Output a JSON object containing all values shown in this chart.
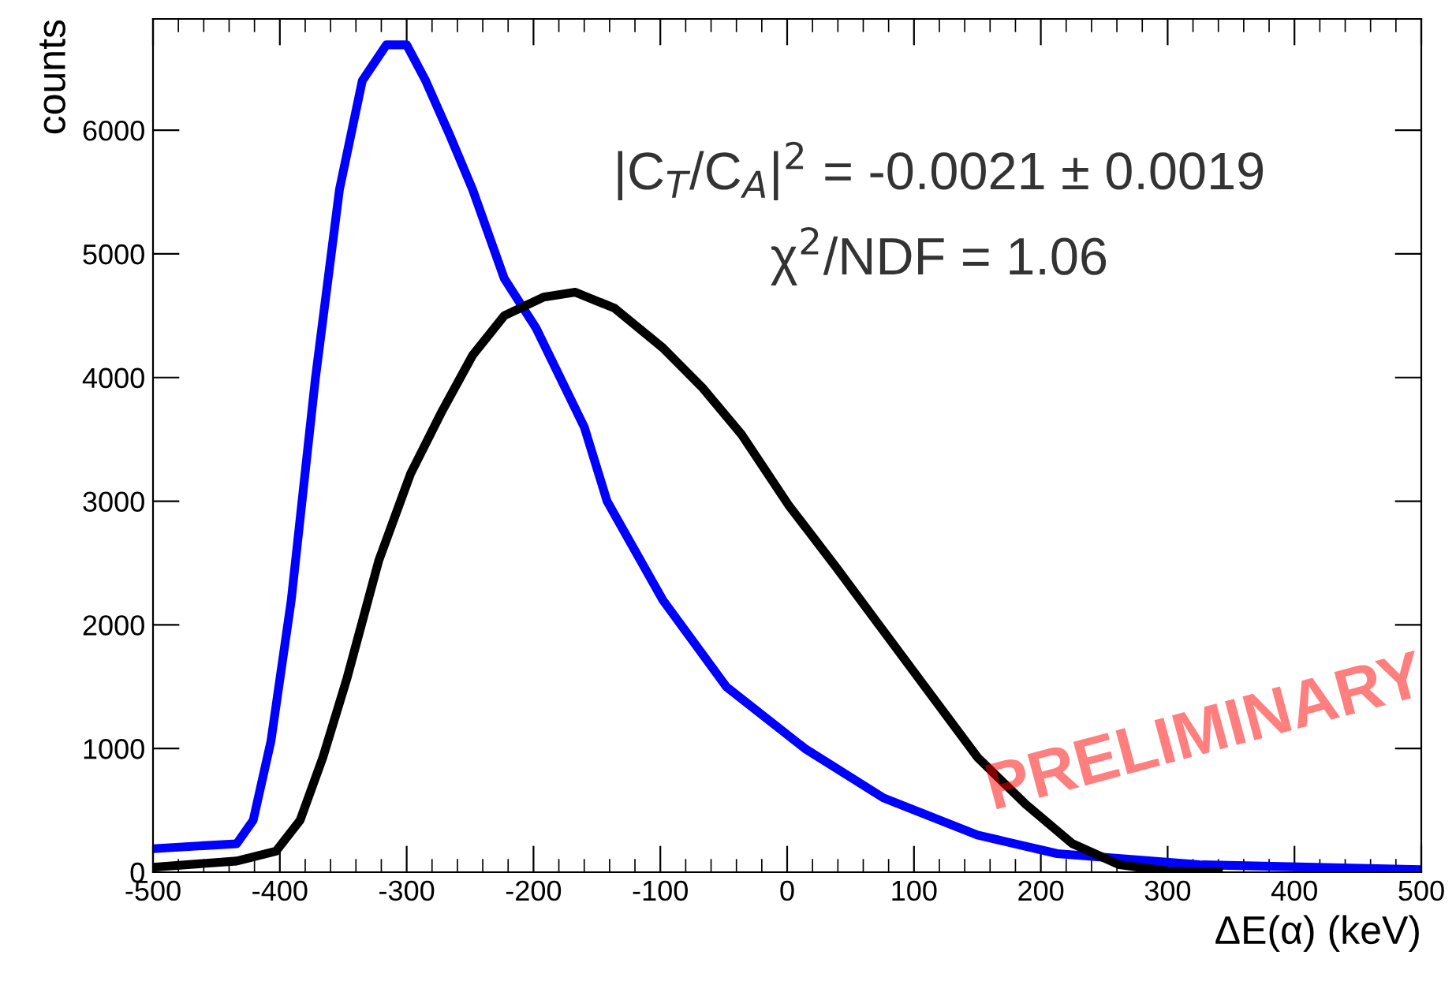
{
  "chart_data": {
    "type": "line",
    "xlabel": "ΔE(α) (keV)",
    "ylabel": "counts",
    "xlim": [
      -500,
      500
    ],
    "ylim": [
      0,
      6900
    ],
    "xticks": [
      -500,
      -400,
      -300,
      -200,
      -100,
      0,
      100,
      200,
      300,
      400,
      500
    ],
    "yticks": [
      0,
      1000,
      2000,
      3000,
      4000,
      5000,
      6000
    ],
    "grid": false,
    "legend": false,
    "marker": "none",
    "line_style": "solid",
    "series": [
      {
        "color": "#0000ff",
        "x": [
          -500,
          -434,
          -421,
          -407,
          -391,
          -372,
          -353,
          -335,
          -316,
          -300,
          -285,
          -266,
          -248,
          -223,
          -198,
          -160,
          -142,
          -98,
          -48,
          14,
          76,
          150,
          213,
          325,
          500
        ],
        "values": [
          190,
          230,
          420,
          1060,
          2200,
          3990,
          5520,
          6400,
          6690,
          6690,
          6400,
          5960,
          5520,
          4800,
          4400,
          3600,
          3000,
          2200,
          1500,
          1000,
          600,
          300,
          150,
          60,
          20
        ]
      },
      {
        "color": "#000000",
        "x": [
          -500,
          -434,
          -403,
          -384,
          -366,
          -347,
          -322,
          -297,
          -272,
          -248,
          -223,
          -192,
          -167,
          -136,
          -98,
          -67,
          -36,
          1,
          39,
          76,
          113,
          150,
          188,
          225,
          262,
          300,
          340
        ],
        "values": [
          40,
          90,
          170,
          420,
          930,
          1570,
          2520,
          3220,
          3730,
          4180,
          4500,
          4650,
          4690,
          4560,
          4240,
          3920,
          3540,
          2970,
          2460,
          1950,
          1440,
          930,
          550,
          230,
          60,
          10,
          0
        ]
      }
    ],
    "annotations": [
      "|C$_{T}$/C$_{A}$|$^{2}$ = -0.0021 ± 0.0019",
      "χ$^{2}$/NDF = 1.06",
      "PRELIMINARY"
    ]
  }
}
